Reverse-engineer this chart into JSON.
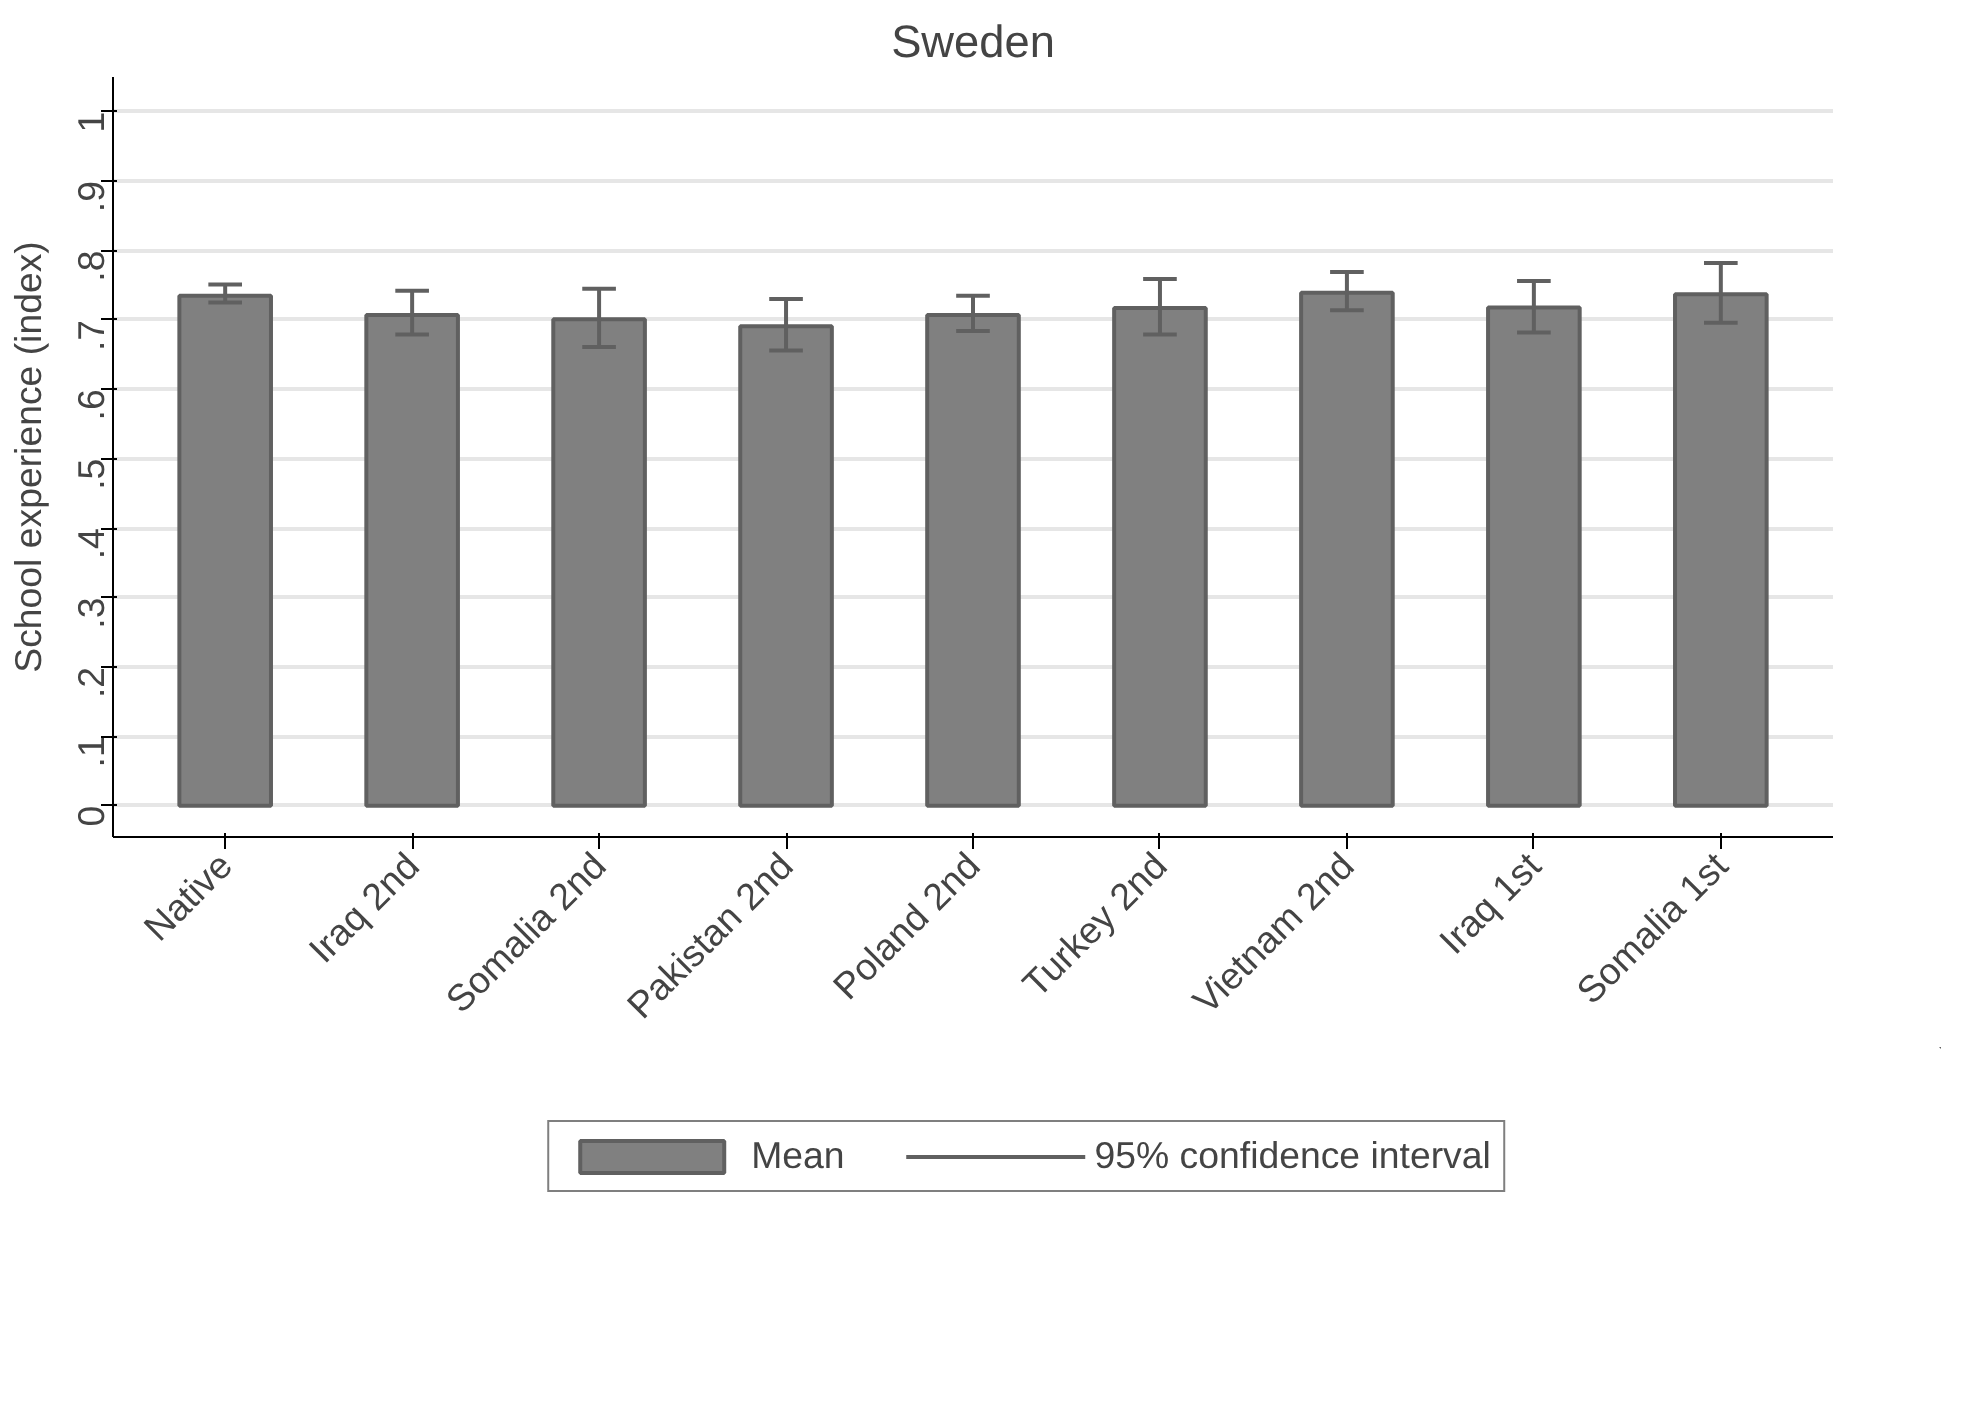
{
  "chart_data": {
    "type": "bar",
    "title": "Sweden",
    "ylabel": "School experience (index)",
    "categories": [
      "Native",
      "Iraq 2nd",
      "Somalia 2nd",
      "Pakistan 2nd",
      "Poland 2nd",
      "Turkey 2nd",
      "Vietnam 2nd",
      "Iraq 1st",
      "Somalia 1st"
    ],
    "series": [
      {
        "name": "Mean",
        "color": "#808080",
        "values": [
          0.735,
          0.707,
          0.701,
          0.691,
          0.707,
          0.717,
          0.739,
          0.718,
          0.737
        ],
        "errors": [
          [
            0.725,
            0.751
          ],
          [
            0.679,
            0.742
          ],
          [
            0.661,
            0.745
          ],
          [
            0.656,
            0.73
          ],
          [
            0.684,
            0.735
          ],
          [
            0.679,
            0.759
          ],
          [
            0.714,
            0.769
          ],
          [
            0.682,
            0.756
          ],
          [
            0.696,
            0.782
          ]
        ]
      }
    ],
    "annotations": [
      "95% confidence interval"
    ],
    "ylim": [
      -0.045,
      1.05
    ],
    "yticks": [
      0,
      {
        "value": 0.1,
        "label": ".1"
      },
      {
        "value": 0.2,
        "label": ".2"
      },
      {
        "value": 0.3,
        "label": ".3"
      },
      {
        "value": 0.4,
        "label": ".4"
      },
      {
        "value": 0.5,
        "label": ".5"
      },
      {
        "value": 0.6,
        "label": ".6"
      },
      {
        "value": 0.7,
        "label": ".7"
      },
      {
        "value": 0.8,
        "label": ".8"
      },
      {
        "value": 0.9,
        "label": ".9"
      },
      1
    ],
    "grid": "y",
    "legend": "bottom"
  }
}
